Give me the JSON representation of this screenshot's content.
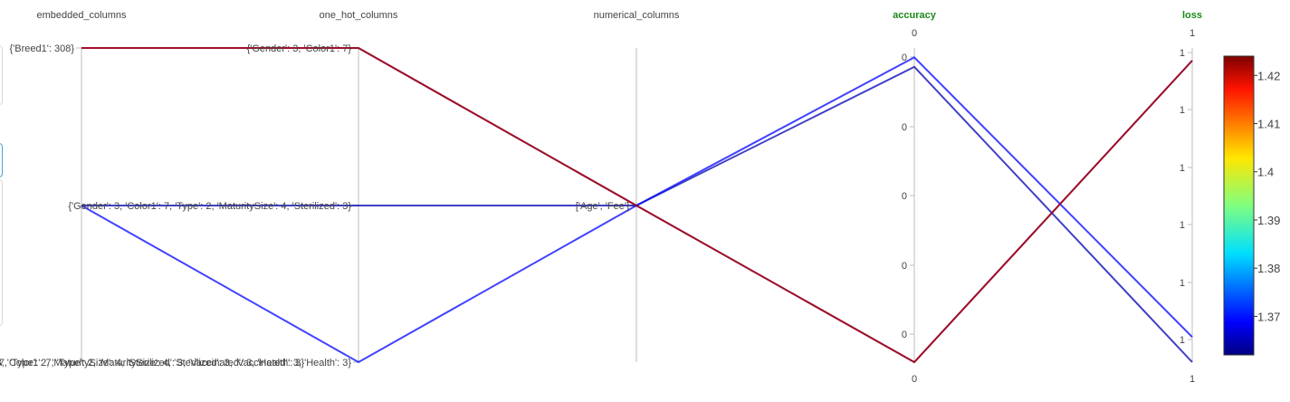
{
  "chart_data": {
    "type": "parallel_coordinates",
    "dimensions": [
      {
        "name": "embedded_columns",
        "kind": "categorical",
        "categories": [
          "{'Breed1': 308}",
          "{'Gender': 3, 'Color1': 7, 'Type': 2, 'MaturitySize': 4, 'Sterilized': 3}",
          "8, 'Color3': 7, 'Type': 2, 'MaturitySize': 4, 'Sterilized': 3, 'Vaccinated': 3, 'Health': 3}"
        ],
        "tick_labels": [
          "{'Breed1': 308}",
          "8, 'Color3': 7, 'Type': 2, 'MaturitySize': 4, 'Sterilized': 3, 'Vaccinated': 3, 'Health': 3}"
        ]
      },
      {
        "name": "one_hot_columns",
        "kind": "categorical",
        "tick_labels": [
          "{'Gender': 3, 'Color1': 7}",
          "{'Gender': 3, 'Color1': 7, 'Type': 2, 'MaturitySize': 4, 'Sterilized': 3}",
          "{'Gender': 3, 'Color1': 7, 'Type': 2, 'MaturitySize': 4, 'Sterilized': 3, 'Vaccinated': 3, 'Health': 3}"
        ]
      },
      {
        "name": "numerical_columns",
        "kind": "categorical",
        "tick_labels": [
          "['Age', 'Fee']"
        ]
      },
      {
        "name": "accuracy",
        "kind": "numeric",
        "highlight": true,
        "range_labels": [
          "0",
          "0"
        ],
        "tick_labels": [
          "0",
          "0",
          "0",
          "0",
          "0"
        ]
      },
      {
        "name": "loss",
        "kind": "numeric",
        "highlight": true,
        "range_labels": [
          "1",
          "1"
        ],
        "tick_labels": [
          "1",
          "1",
          "1",
          "1",
          "1",
          "1"
        ]
      }
    ],
    "lines": [
      {
        "color_value": 1.42,
        "embedded_columns": 0,
        "one_hot_columns": 0,
        "numerical_columns": 0,
        "accuracy": 0.0,
        "loss": 0.96
      },
      {
        "color_value": 1.365,
        "embedded_columns": 1,
        "one_hot_columns": 1,
        "numerical_columns": 0,
        "accuracy": 0.94,
        "loss": 0.0
      },
      {
        "color_value": 1.37,
        "embedded_columns": 1,
        "one_hot_columns": 2,
        "numerical_columns": 0,
        "accuracy": 0.97,
        "loss": 0.08
      },
      {
        "color_value": 1.362,
        "embedded_columns": 0,
        "one_hot_columns": 0,
        "numerical_columns": 0,
        "accuracy": 0.0,
        "loss": 0.96,
        "hidden_dup": true
      }
    ],
    "colorbar": {
      "colormap": "jet",
      "min": 1.362,
      "max": 1.424,
      "ticks": [
        1.37,
        1.38,
        1.39,
        1.4,
        1.41,
        1.42
      ],
      "tick_labels": [
        "1.37",
        "1.38",
        "1.39",
        "1.4",
        "1.41",
        "1.42"
      ]
    },
    "colors": {
      "axis": "#bdbdbd",
      "highlight_title": "#1a8a1a",
      "text": "#444444"
    }
  }
}
